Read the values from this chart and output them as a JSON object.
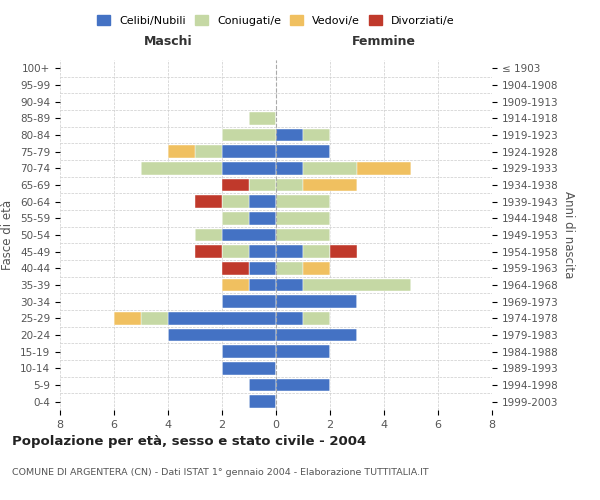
{
  "age_groups": [
    "0-4",
    "5-9",
    "10-14",
    "15-19",
    "20-24",
    "25-29",
    "30-34",
    "35-39",
    "40-44",
    "45-49",
    "50-54",
    "55-59",
    "60-64",
    "65-69",
    "70-74",
    "75-79",
    "80-84",
    "85-89",
    "90-94",
    "95-99",
    "100+"
  ],
  "birth_years": [
    "1999-2003",
    "1994-1998",
    "1989-1993",
    "1984-1988",
    "1979-1983",
    "1974-1978",
    "1969-1973",
    "1964-1968",
    "1959-1963",
    "1954-1958",
    "1949-1953",
    "1944-1948",
    "1939-1943",
    "1934-1938",
    "1929-1933",
    "1924-1928",
    "1919-1923",
    "1914-1918",
    "1909-1913",
    "1904-1908",
    "≤ 1903"
  ],
  "maschi": {
    "celibi": [
      1,
      1,
      2,
      2,
      4,
      4,
      2,
      1,
      1,
      1,
      2,
      1,
      1,
      0,
      2,
      2,
      0,
      0,
      0,
      0,
      0
    ],
    "coniugati": [
      0,
      0,
      0,
      0,
      0,
      1,
      0,
      0,
      0,
      1,
      1,
      1,
      1,
      1,
      3,
      1,
      2,
      1,
      0,
      0,
      0
    ],
    "vedovi": [
      0,
      0,
      0,
      0,
      0,
      1,
      0,
      1,
      0,
      0,
      0,
      0,
      0,
      0,
      0,
      1,
      0,
      0,
      0,
      0,
      0
    ],
    "divorziati": [
      0,
      0,
      0,
      0,
      0,
      0,
      0,
      0,
      1,
      1,
      0,
      0,
      1,
      1,
      0,
      0,
      0,
      0,
      0,
      0,
      0
    ]
  },
  "femmine": {
    "nubili": [
      0,
      2,
      0,
      2,
      3,
      1,
      3,
      1,
      0,
      1,
      0,
      0,
      0,
      0,
      1,
      2,
      1,
      0,
      0,
      0,
      0
    ],
    "coniugate": [
      0,
      0,
      0,
      0,
      0,
      1,
      0,
      4,
      1,
      1,
      2,
      2,
      2,
      1,
      2,
      0,
      1,
      0,
      0,
      0,
      0
    ],
    "vedove": [
      0,
      0,
      0,
      0,
      0,
      0,
      0,
      0,
      1,
      0,
      0,
      0,
      0,
      2,
      2,
      0,
      0,
      0,
      0,
      0,
      0
    ],
    "divorziate": [
      0,
      0,
      0,
      0,
      0,
      0,
      0,
      0,
      0,
      1,
      0,
      0,
      0,
      0,
      0,
      0,
      0,
      0,
      0,
      0,
      0
    ]
  },
  "colors": {
    "celibi_nubili": "#4472C4",
    "coniugati": "#C5D8A4",
    "vedovi": "#F0C060",
    "divorziati": "#C0392B"
  },
  "title": "Popolazione per età, sesso e stato civile - 2004",
  "subtitle": "COMUNE DI ARGENTERA (CN) - Dati ISTAT 1° gennaio 2004 - Elaborazione TUTTITALIA.IT",
  "xlabel_left": "Maschi",
  "xlabel_right": "Femmine",
  "ylabel_left": "Fasce di età",
  "ylabel_right": "Anni di nascita",
  "xlim": 8,
  "background_color": "#ffffff",
  "grid_color": "#cccccc"
}
